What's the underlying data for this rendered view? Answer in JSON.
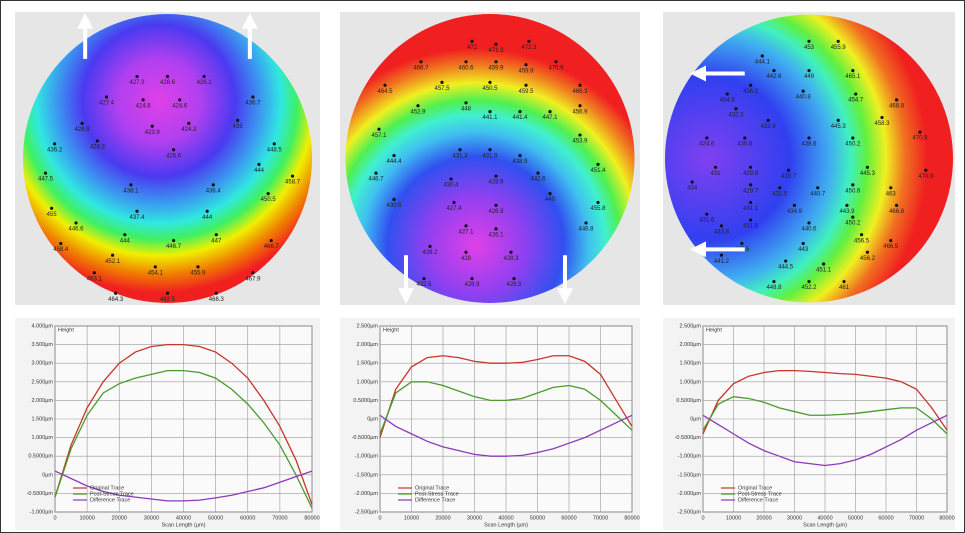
{
  "chart_data": [
    {
      "type": "wafer-map",
      "values": [
        427.3,
        428.6,
        426.1,
        427.4,
        424.8,
        424.6,
        428.9,
        423.9,
        424.3,
        435.0,
        436.7,
        436.2,
        428.3,
        426.6,
        448.5,
        444.0,
        447.5,
        438.1,
        436.4,
        450.5,
        455.0,
        437.4,
        444.0,
        458.7,
        446.6,
        444.0,
        446.7,
        447.0,
        458.4,
        452.1,
        454.1,
        455.9,
        463.1,
        464.3,
        462.5,
        466.3,
        467.9,
        466.7
      ]
    },
    {
      "type": "wafer-map",
      "values": [
        472.0,
        471.3,
        472.3,
        466.7,
        460.6,
        459.9,
        459.9,
        470.9,
        464.5,
        457.5,
        450.5,
        459.5,
        466.3,
        452.9,
        448.0,
        441.1,
        441.4,
        447.1,
        456.9,
        457.1,
        444.4,
        431.3,
        431.9,
        438.9,
        453.9,
        446.7,
        430.4,
        428.9,
        442.6,
        451.4,
        430.5,
        427.4,
        426.9,
        440.0,
        455.8,
        427.1,
        426.1,
        446.8,
        428.2,
        428.0,
        428.3,
        432.5,
        428.9,
        428.5
      ]
    },
    {
      "type": "wafer-map",
      "values": [
        453.0,
        455.9,
        444.1,
        442.6,
        449.0,
        465.1,
        434.6,
        436.2,
        440.8,
        454.7,
        468.8,
        432.3,
        433.9,
        445.3,
        458.3,
        424.6,
        430.8,
        438.6,
        450.2,
        470.9,
        431.0,
        429.8,
        430.7,
        445.3,
        470.9,
        434.0,
        429.7,
        431.5,
        440.7,
        450.6,
        463.0,
        431.6,
        431.1,
        434.9,
        443.9,
        466.8,
        433.8,
        431.8,
        440.6,
        450.2,
        437.5,
        443.0,
        456.5,
        441.2,
        444.5,
        451.1,
        456.2,
        448.8,
        452.2,
        461.0,
        466.5
      ]
    },
    {
      "type": "line",
      "xlabel": "Scan Length (µm)",
      "ylabel": "Height",
      "grid": true,
      "legend": "lower left",
      "x": [
        0,
        5000,
        10000,
        15000,
        20000,
        25000,
        30000,
        35000,
        40000,
        45000,
        50000,
        55000,
        60000,
        65000,
        70000,
        75000,
        80000
      ],
      "series": [
        {
          "name": "Original Trace",
          "color": "#c8342c",
          "values": [
            -0.6,
            0.8,
            1.8,
            2.5,
            3.0,
            3.3,
            3.45,
            3.5,
            3.5,
            3.45,
            3.3,
            3.0,
            2.6,
            2.0,
            1.3,
            0.4,
            -0.8
          ]
        },
        {
          "name": "Post-Stress Trace",
          "color": "#4a9a2c",
          "values": [
            -0.6,
            0.7,
            1.6,
            2.2,
            2.45,
            2.6,
            2.7,
            2.8,
            2.8,
            2.75,
            2.6,
            2.3,
            1.9,
            1.4,
            0.8,
            0.0,
            -0.9
          ]
        },
        {
          "name": "Difference Trace",
          "color": "#8a3ab8",
          "values": [
            0.1,
            -0.1,
            -0.3,
            -0.45,
            -0.55,
            -0.6,
            -0.65,
            -0.7,
            -0.7,
            -0.68,
            -0.62,
            -0.55,
            -0.45,
            -0.35,
            -0.2,
            -0.05,
            0.1
          ]
        }
      ],
      "xlim": [
        0,
        80000
      ],
      "xticks": [
        0,
        10000,
        20000,
        30000,
        40000,
        50000,
        60000,
        70000,
        80000
      ],
      "ylim": [
        -1,
        4
      ],
      "yticks": [
        {
          "value": -1,
          "label": "-1.000µm"
        },
        {
          "value": -0.5,
          "label": "-0.5000µm"
        },
        {
          "value": 0,
          "label": "0µm"
        },
        {
          "value": 0.5,
          "label": "0.5000µm"
        },
        {
          "value": 1,
          "label": "1.000µm"
        },
        {
          "value": 1.5,
          "label": "1.500µm"
        },
        {
          "value": 2,
          "label": "2.000µm"
        },
        {
          "value": 2.5,
          "label": "2.500µm"
        },
        {
          "value": 3,
          "label": "3.000µm"
        },
        {
          "value": 3.5,
          "label": "3.500µm"
        },
        {
          "value": 4,
          "label": "4.000µm"
        }
      ]
    },
    {
      "type": "line",
      "xlabel": "Scan Length (µm)",
      "ylabel": "Height",
      "grid": true,
      "legend": "lower left",
      "x": [
        0,
        5000,
        10000,
        15000,
        20000,
        25000,
        30000,
        35000,
        40000,
        45000,
        50000,
        55000,
        60000,
        65000,
        70000,
        75000,
        80000
      ],
      "series": [
        {
          "name": "Original Trace",
          "color": "#c8342c",
          "values": [
            -0.5,
            0.8,
            1.4,
            1.65,
            1.7,
            1.65,
            1.55,
            1.5,
            1.5,
            1.52,
            1.6,
            1.7,
            1.7,
            1.55,
            1.2,
            0.5,
            -0.2
          ]
        },
        {
          "name": "Post-Stress Trace",
          "color": "#4a9a2c",
          "values": [
            -0.4,
            0.7,
            1.0,
            1.0,
            0.9,
            0.75,
            0.6,
            0.5,
            0.5,
            0.55,
            0.7,
            0.85,
            0.9,
            0.8,
            0.5,
            0.1,
            -0.3
          ]
        },
        {
          "name": "Difference Trace",
          "color": "#8a3ab8",
          "values": [
            0.1,
            -0.2,
            -0.4,
            -0.6,
            -0.75,
            -0.85,
            -0.95,
            -1.0,
            -1.0,
            -0.98,
            -0.9,
            -0.8,
            -0.65,
            -0.5,
            -0.3,
            -0.1,
            0.1
          ]
        }
      ],
      "xlim": [
        0,
        80000
      ],
      "xticks": [
        0,
        10000,
        20000,
        30000,
        40000,
        50000,
        60000,
        70000,
        80000
      ],
      "ylim": [
        -2.5,
        2.5
      ],
      "yticks": [
        {
          "value": -2.5,
          "label": "-2.500µm"
        },
        {
          "value": -2,
          "label": "-2.000µm"
        },
        {
          "value": -1.5,
          "label": "-1.500µm"
        },
        {
          "value": -1,
          "label": "-1.000µm"
        },
        {
          "value": -0.5,
          "label": "-0.5000µm"
        },
        {
          "value": 0,
          "label": "0µm"
        },
        {
          "value": 0.5,
          "label": "0.5000µm"
        },
        {
          "value": 1,
          "label": "1.000µm"
        },
        {
          "value": 1.5,
          "label": "1.500µm"
        },
        {
          "value": 2,
          "label": "2.000µm"
        },
        {
          "value": 2.5,
          "label": "2.500µm"
        }
      ]
    },
    {
      "type": "line",
      "xlabel": "Scan Length (µm)",
      "ylabel": "Height",
      "grid": true,
      "legend": "lower left",
      "x": [
        0,
        5000,
        10000,
        15000,
        20000,
        25000,
        30000,
        35000,
        40000,
        45000,
        50000,
        55000,
        60000,
        65000,
        70000,
        75000,
        80000
      ],
      "series": [
        {
          "name": "Original Trace",
          "color": "#c8342c",
          "values": [
            -0.4,
            0.5,
            0.95,
            1.15,
            1.25,
            1.3,
            1.3,
            1.28,
            1.25,
            1.22,
            1.2,
            1.15,
            1.1,
            1.0,
            0.8,
            0.3,
            -0.3
          ]
        },
        {
          "name": "Post-Stress Trace",
          "color": "#4a9a2c",
          "values": [
            -0.3,
            0.4,
            0.6,
            0.55,
            0.45,
            0.3,
            0.2,
            0.1,
            0.1,
            0.12,
            0.15,
            0.2,
            0.25,
            0.3,
            0.3,
            0.0,
            -0.4
          ]
        },
        {
          "name": "Difference Trace",
          "color": "#8a3ab8",
          "values": [
            0.1,
            -0.15,
            -0.4,
            -0.65,
            -0.85,
            -1.0,
            -1.15,
            -1.2,
            -1.25,
            -1.2,
            -1.1,
            -0.95,
            -0.75,
            -0.55,
            -0.3,
            -0.1,
            0.1
          ]
        }
      ],
      "xlim": [
        0,
        80000
      ],
      "xticks": [
        0,
        10000,
        20000,
        30000,
        40000,
        50000,
        60000,
        70000,
        80000
      ],
      "ylim": [
        -2.5,
        2.5
      ],
      "yticks": [
        {
          "value": -2.5,
          "label": "-2.500µm"
        },
        {
          "value": -2,
          "label": "-2.000µm"
        },
        {
          "value": -1.5,
          "label": "-1.500µm"
        },
        {
          "value": -1,
          "label": "-1.000µm"
        },
        {
          "value": -0.5,
          "label": "-0.5000µm"
        },
        {
          "value": 0,
          "label": "0µm"
        },
        {
          "value": 0.5,
          "label": "0.5000µm"
        },
        {
          "value": 1,
          "label": "1.000µm"
        },
        {
          "value": 1.5,
          "label": "1.500µm"
        },
        {
          "value": 2,
          "label": "2.000µm"
        },
        {
          "value": 2.5,
          "label": "2.500µm"
        }
      ]
    }
  ]
}
